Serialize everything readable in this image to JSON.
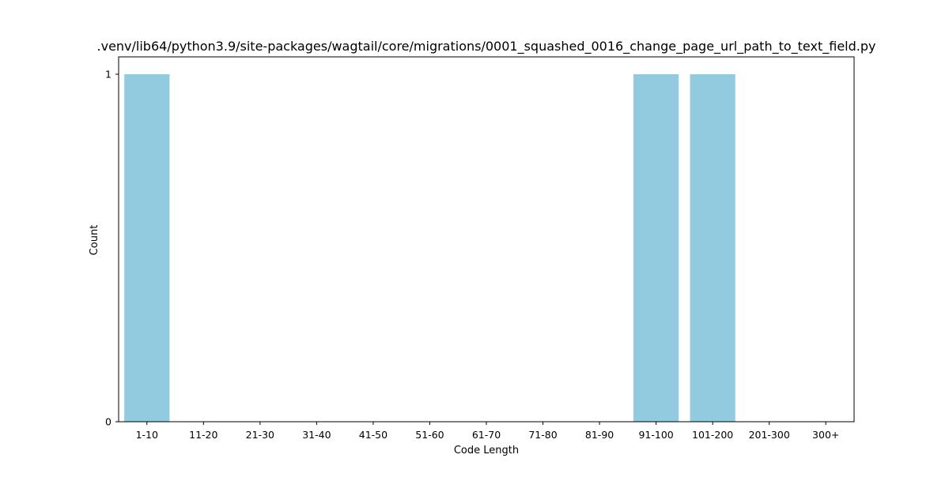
{
  "chart_data": {
    "type": "bar",
    "title": ".venv/lib64/python3.9/site-packages/wagtail/core/migrations/0001_squashed_0016_change_page_url_path_to_text_field.py",
    "xlabel": "Code Length",
    "ylabel": "Count",
    "categories": [
      "1-10",
      "11-20",
      "21-30",
      "31-40",
      "41-50",
      "51-60",
      "61-70",
      "71-80",
      "81-90",
      "91-100",
      "101-200",
      "201-300",
      "300+"
    ],
    "values": [
      1,
      0,
      0,
      0,
      0,
      0,
      0,
      0,
      0,
      1,
      1,
      0,
      0
    ],
    "ylim": [
      0,
      1
    ],
    "yticks": [
      "0",
      "1"
    ],
    "grid": false,
    "bar_color": "#92cadf"
  }
}
